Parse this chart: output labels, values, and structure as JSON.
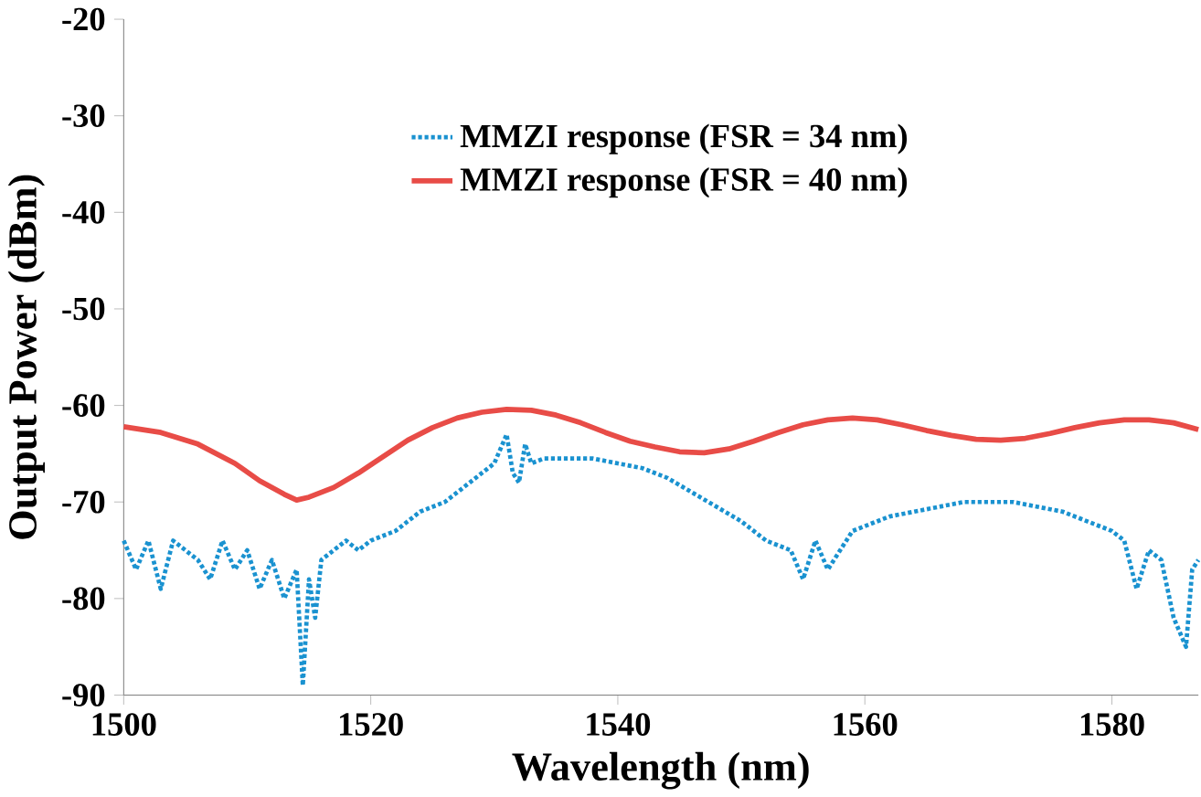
{
  "chart_data": {
    "type": "line",
    "xlabel": "Wavelength (nm)",
    "ylabel": "Output Power (dBm)",
    "xlim": [
      1500,
      1587
    ],
    "ylim": [
      -90,
      -20
    ],
    "xticks": [
      1500,
      1520,
      1540,
      1560,
      1580
    ],
    "yticks": [
      -90,
      -80,
      -70,
      -60,
      -50,
      -40,
      -30,
      -20
    ],
    "grid": false,
    "legend": "top",
    "marker": "none",
    "series": [
      {
        "name": "MMZI response (FSR = 34 nm)",
        "color": "#1a92d0",
        "line_style": "dotted",
        "x": [
          1500,
          1501,
          1502,
          1503,
          1504,
          1505,
          1506,
          1507,
          1508,
          1509,
          1510,
          1511,
          1512,
          1513,
          1514,
          1514.5,
          1515,
          1515.5,
          1516,
          1517,
          1518,
          1519,
          1520,
          1522,
          1524,
          1526,
          1528,
          1530,
          1531,
          1531.5,
          1532,
          1532.5,
          1533,
          1534,
          1536,
          1538,
          1540,
          1542,
          1544,
          1546,
          1548,
          1550,
          1552,
          1554,
          1555,
          1556,
          1557,
          1558,
          1559,
          1560,
          1562,
          1564,
          1566,
          1568,
          1570,
          1572,
          1574,
          1576,
          1578,
          1580,
          1581,
          1582,
          1583,
          1584,
          1585,
          1586,
          1586.5,
          1587
        ],
        "values": [
          -74,
          -77,
          -74,
          -79,
          -74,
          -75,
          -76,
          -78,
          -74,
          -77,
          -75,
          -79,
          -76,
          -80,
          -77,
          -89,
          -78,
          -82,
          -76,
          -75,
          -74,
          -75,
          -74,
          -73,
          -71,
          -70,
          -68,
          -66,
          -63,
          -67,
          -68,
          -64,
          -66,
          -65.5,
          -65.5,
          -65.5,
          -66,
          -66.5,
          -67.5,
          -69,
          -70.5,
          -72,
          -74,
          -75,
          -78,
          -74,
          -77,
          -75,
          -73,
          -72.5,
          -71.5,
          -71,
          -70.5,
          -70,
          -70,
          -70,
          -70.5,
          -71,
          -72,
          -73,
          -74,
          -79,
          -75,
          -76,
          -82,
          -85,
          -77,
          -76
        ]
      },
      {
        "name": "MMZI response (FSR = 40 nm)",
        "color": "#e84c47",
        "line_style": "solid",
        "x": [
          1500,
          1503,
          1506,
          1509,
          1511,
          1513,
          1514,
          1515,
          1517,
          1519,
          1521,
          1523,
          1525,
          1527,
          1529,
          1531,
          1533,
          1535,
          1537,
          1539,
          1541,
          1543,
          1545,
          1547,
          1549,
          1551,
          1553,
          1555,
          1557,
          1559,
          1561,
          1563,
          1565,
          1567,
          1569,
          1571,
          1573,
          1575,
          1577,
          1579,
          1581,
          1583,
          1585,
          1587
        ],
        "values": [
          -62.2,
          -62.8,
          -64,
          -66,
          -67.8,
          -69.2,
          -69.8,
          -69.5,
          -68.5,
          -67,
          -65.3,
          -63.6,
          -62.3,
          -61.3,
          -60.7,
          -60.4,
          -60.5,
          -61,
          -61.8,
          -62.8,
          -63.7,
          -64.3,
          -64.8,
          -64.9,
          -64.5,
          -63.7,
          -62.8,
          -62,
          -61.5,
          -61.3,
          -61.5,
          -62,
          -62.6,
          -63.1,
          -63.5,
          -63.6,
          -63.4,
          -62.9,
          -62.3,
          -61.8,
          -61.5,
          -61.5,
          -61.8,
          -62.5
        ]
      }
    ]
  }
}
